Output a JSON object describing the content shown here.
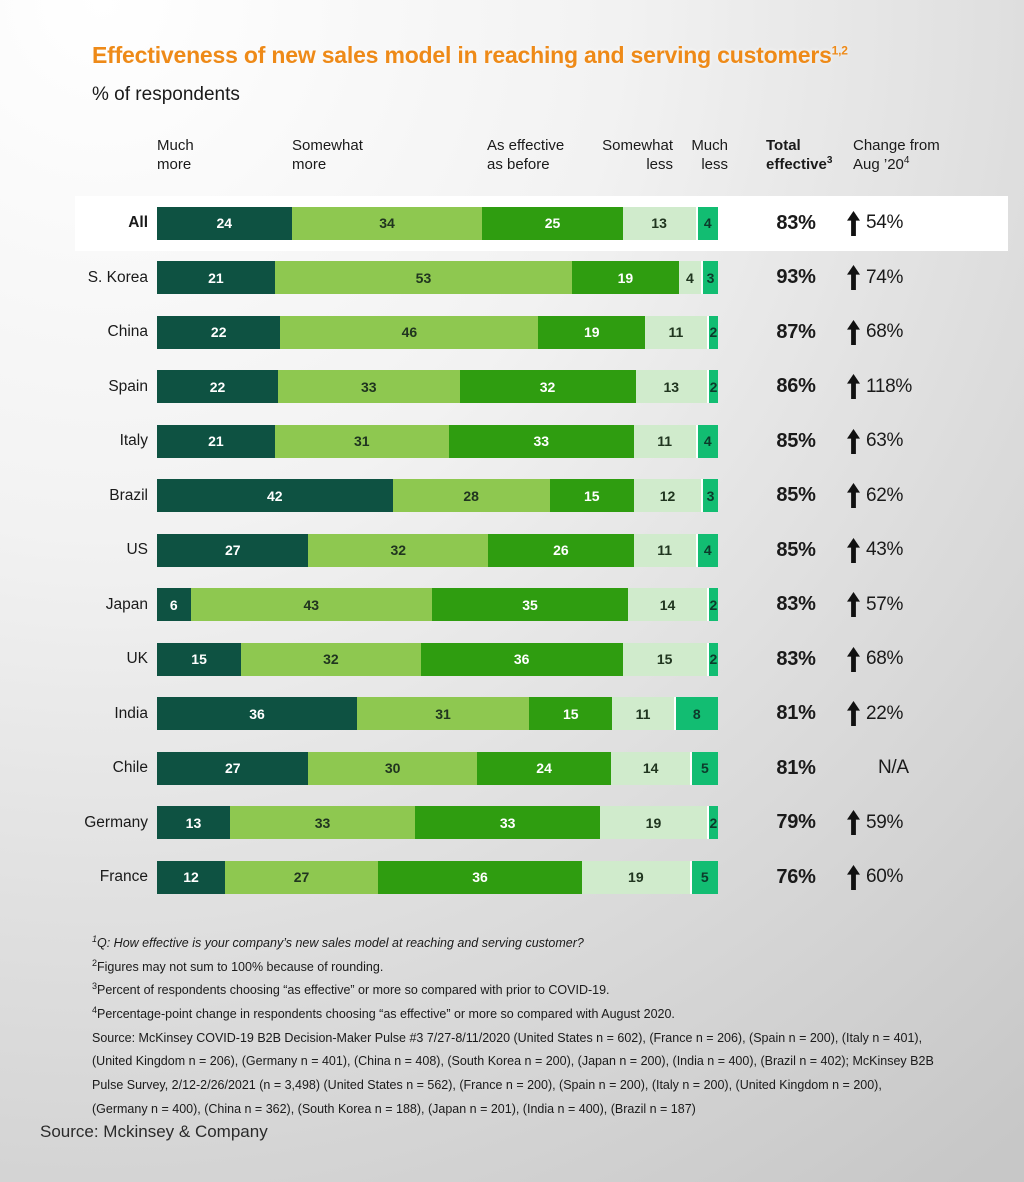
{
  "header": {
    "title": "Effectiveness of new sales model in reaching and serving customers",
    "title_sup": "1,2",
    "subtitle": "% of respondents"
  },
  "colors": {
    "title_accent": "#ee8a18",
    "segments": [
      "#0e5242",
      "#8ec850",
      "#2f9d10",
      "#d0ebcc",
      "#12bd72"
    ],
    "segment_text": [
      "#ffffff",
      "#20351f",
      "#ffffff",
      "#20351f",
      "#0d3a2b"
    ],
    "arrow": "#111111",
    "highlight_row_bg": "#ffffff"
  },
  "chart_data": {
    "type": "bar",
    "orientation": "horizontal",
    "stacked": true,
    "normalized_to_full_width": true,
    "title": "Effectiveness of new sales model in reaching and serving customers",
    "subtitle": "% of respondents",
    "headers": [
      {
        "line1": "Much",
        "line2": "more",
        "sup": ""
      },
      {
        "line1": "Somewhat",
        "line2": "more",
        "sup": ""
      },
      {
        "line1": "As effective",
        "line2": "as before",
        "sup": ""
      },
      {
        "line1": "Somewhat",
        "line2": "less",
        "sup": ""
      },
      {
        "line1": "Much",
        "line2": "less",
        "sup": ""
      },
      {
        "line1": "Total",
        "line2": "effective",
        "sup": "3"
      },
      {
        "line1": "Change from",
        "line2": "Aug ’20",
        "sup": "4"
      }
    ],
    "series_labels": [
      "Much more",
      "Somewhat more",
      "As effective as before",
      "Somewhat less",
      "Much less"
    ],
    "rows": [
      {
        "label": "All",
        "bold": true,
        "highlight": true,
        "values": [
          24,
          34,
          25,
          13,
          4
        ],
        "total": "83%",
        "change": "54%",
        "arrow": true
      },
      {
        "label": "S. Korea",
        "bold": false,
        "highlight": false,
        "values": [
          21,
          53,
          19,
          4,
          3
        ],
        "total": "93%",
        "change": "74%",
        "arrow": true
      },
      {
        "label": "China",
        "bold": false,
        "highlight": false,
        "values": [
          22,
          46,
          19,
          11,
          2
        ],
        "total": "87%",
        "change": "68%",
        "arrow": true
      },
      {
        "label": "Spain",
        "bold": false,
        "highlight": false,
        "values": [
          22,
          33,
          32,
          13,
          2
        ],
        "total": "86%",
        "change": "118%",
        "arrow": true
      },
      {
        "label": "Italy",
        "bold": false,
        "highlight": false,
        "values": [
          21,
          31,
          33,
          11,
          4
        ],
        "total": "85%",
        "change": "63%",
        "arrow": true
      },
      {
        "label": "Brazil",
        "bold": false,
        "highlight": false,
        "values": [
          42,
          28,
          15,
          12,
          3
        ],
        "total": "85%",
        "change": "62%",
        "arrow": true
      },
      {
        "label": "US",
        "bold": false,
        "highlight": false,
        "values": [
          27,
          32,
          26,
          11,
          4
        ],
        "total": "85%",
        "change": "43%",
        "arrow": true
      },
      {
        "label": "Japan",
        "bold": false,
        "highlight": false,
        "values": [
          6,
          43,
          35,
          14,
          2
        ],
        "total": "83%",
        "change": "57%",
        "arrow": true
      },
      {
        "label": "UK",
        "bold": false,
        "highlight": false,
        "values": [
          15,
          32,
          36,
          15,
          2
        ],
        "total": "83%",
        "change": "68%",
        "arrow": true
      },
      {
        "label": "India",
        "bold": false,
        "highlight": false,
        "values": [
          36,
          31,
          15,
          11,
          8
        ],
        "total": "81%",
        "change": "22%",
        "arrow": true
      },
      {
        "label": "Chile",
        "bold": false,
        "highlight": false,
        "values": [
          27,
          30,
          24,
          14,
          5
        ],
        "total": "81%",
        "change": "N/A",
        "arrow": false
      },
      {
        "label": "Germany",
        "bold": false,
        "highlight": false,
        "values": [
          13,
          33,
          33,
          19,
          2
        ],
        "total": "79%",
        "change": "59%",
        "arrow": true
      },
      {
        "label": "France",
        "bold": false,
        "highlight": false,
        "values": [
          12,
          27,
          36,
          19,
          5
        ],
        "total": "76%",
        "change": "60%",
        "arrow": true
      }
    ]
  },
  "footnotes": [
    {
      "sup": "1",
      "italic": true,
      "text": "Q: How effective is your company’s new sales model at reaching and serving customer?"
    },
    {
      "sup": "2",
      "italic": false,
      "text": "Figures may not sum to 100% because of rounding."
    },
    {
      "sup": "3",
      "italic": false,
      "text": "Percent of respondents choosing “as effective” or more so compared with prior to COVID-19."
    },
    {
      "sup": "4",
      "italic": false,
      "text": "Percentage-point change in respondents choosing “as effective” or more so compared with August 2020."
    },
    {
      "sup": "",
      "italic": false,
      "text": "Source: McKinsey COVID-19 B2B Decision-Maker Pulse #3 7/27-8/11/2020 (United States n = 602), (France n = 206), (Spain n = 200), (Italy n = 401),"
    },
    {
      "sup": "",
      "italic": false,
      "text": "(United Kingdom n = 206), (Germany n = 401), (China n = 408), (South Korea n = 200),  (Japan n = 200),  (India n = 400), (Brazil n = 402); McKinsey B2B"
    },
    {
      "sup": "",
      "italic": false,
      "text": "Pulse Survey, 2/12-2/26/2021 (n = 3,498) (United States n = 562), (France n = 200), (Spain n = 200), (Italy n = 200), (United Kingdom n = 200),"
    },
    {
      "sup": "",
      "italic": false,
      "text": "(Germany n = 400), (China n = 362), (South Korea n = 188),  (Japan n = 201),  (India n = 400), (Brazil n = 187)"
    }
  ],
  "source_note": "Source: Mckinsey & Company"
}
